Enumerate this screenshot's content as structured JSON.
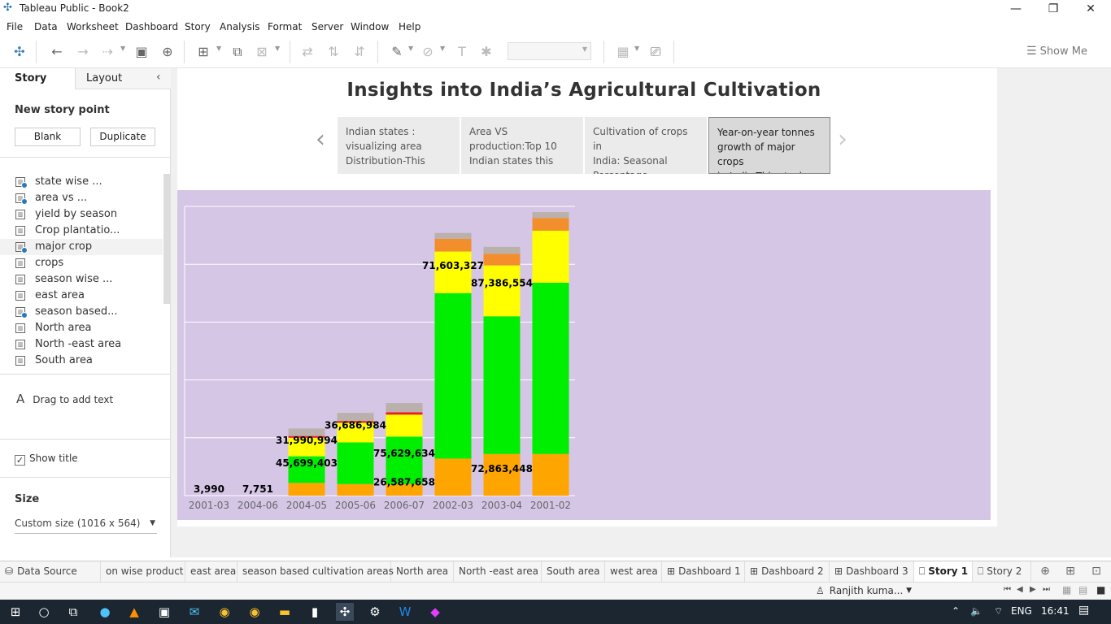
{
  "window": {
    "title": "Tableau Public - Book2",
    "controls": [
      "—",
      "❐",
      "✕"
    ]
  },
  "menu": [
    "File",
    "Data",
    "Worksheet",
    "Dashboard",
    "Story",
    "Analysis",
    "Format",
    "Server",
    "Window",
    "Help"
  ],
  "toolbar": {
    "show_me": "Show Me"
  },
  "sidebar": {
    "tab_story": "Story",
    "tab_layout": "Layout",
    "new_story_point": "New story point",
    "blank": "Blank",
    "duplicate": "Duplicate",
    "sheets": [
      {
        "label": "state wise ...",
        "used": true
      },
      {
        "label": "area vs ...",
        "used": true
      },
      {
        "label": "yield by season",
        "used": false
      },
      {
        "label": "Crop plantatio...",
        "used": false
      },
      {
        "label": "major crop",
        "used": true
      },
      {
        "label": "crops",
        "used": false
      },
      {
        "label": "season wise ...",
        "used": false
      },
      {
        "label": "east area",
        "used": false
      },
      {
        "label": " season based...",
        "used": true
      },
      {
        "label": "North area",
        "used": false
      },
      {
        "label": "North -east area",
        "used": false
      },
      {
        "label": "South area",
        "used": false
      }
    ],
    "drag_text": "Drag to add text",
    "show_title": "Show title",
    "show_title_checked": true,
    "size_label": "Size",
    "size_value": "Custom size (1016 x 564)"
  },
  "story": {
    "title": "Insights into India’s Agricultural Cultivation",
    "points": [
      {
        "text": "Indian states :\nvisualizing area\nDistribution-This",
        "active": false
      },
      {
        "text": "Area VS\nproduction:Top 10\nIndian states this",
        "active": false
      },
      {
        "text": "Cultivation of crops in\nIndia: Seasonal\nPercentage",
        "active": false
      },
      {
        "text": "Year-on-year tonnes\ngrowth of major crops\nin India-This stacker",
        "active": true
      }
    ]
  },
  "chart_data": {
    "type": "bar",
    "stacked": true,
    "categories": [
      "2001-03",
      "2004-06",
      "2004-05",
      "2005-06",
      "2006-07",
      "2002-03",
      "2003-04",
      "2001-02"
    ],
    "ylim": [
      0,
      250000000
    ],
    "grid": true,
    "series": [
      {
        "color": "#ffa500",
        "values": [
          3990,
          7751,
          11000000,
          10000000,
          10000000,
          32000000,
          36000000,
          36000000
        ]
      },
      {
        "color": "#00ee00",
        "values": [
          0,
          0,
          23000000,
          36000000,
          41000000,
          143000000,
          119000000,
          148000000
        ]
      },
      {
        "color": "#ffff00",
        "values": [
          0,
          0,
          16000000,
          17000000,
          19000000,
          36000000,
          44000000,
          45000000
        ]
      },
      {
        "color": "#ed1c24",
        "values": [
          0,
          0,
          1500000,
          1500000,
          2000000,
          0,
          0,
          0
        ]
      },
      {
        "color": "#f28e2b",
        "values": [
          0,
          0,
          0,
          0,
          0,
          11000000,
          10000000,
          11000000
        ]
      },
      {
        "color": "#bab0ac",
        "values": [
          0,
          0,
          6500000,
          7000000,
          8000000,
          5000000,
          6000000,
          5000000
        ]
      }
    ],
    "labels": [
      {
        "category": "2001-03",
        "text": "3,990",
        "level": 3990
      },
      {
        "category": "2004-06",
        "text": "7,751",
        "level": 7751
      },
      {
        "category": "2004-05",
        "text": "45,699,403",
        "level": 22500000
      },
      {
        "category": "2004-05",
        "text": "31,990,994",
        "level": 42000000
      },
      {
        "category": "2005-06",
        "text": "36,686,984",
        "level": 55000000
      },
      {
        "category": "2006-07",
        "text": "75,629,634",
        "level": 31000000
      },
      {
        "category": "2006-07",
        "text": "26,587,658",
        "level": 6000000
      },
      {
        "category": "2002-03",
        "text": "71,603,327",
        "level": 193000000
      },
      {
        "category": "2003-04",
        "text": "87,386,554",
        "level": 178000000
      },
      {
        "category": "2003-04",
        "text": "72,863,448",
        "level": 17500000
      }
    ]
  },
  "bottom_tabs": [
    {
      "label": "Data Source",
      "icon": "database-icon",
      "active": false
    },
    {
      "label": "on wise product",
      "icon": "",
      "active": false
    },
    {
      "label": "east area",
      "icon": "",
      "active": false
    },
    {
      "label": "season based cultivation areas",
      "icon": "",
      "active": false
    },
    {
      "label": "North area",
      "icon": "",
      "active": false
    },
    {
      "label": "North -east area",
      "icon": "",
      "active": false
    },
    {
      "label": "South area",
      "icon": "",
      "active": false
    },
    {
      "label": "west area",
      "icon": "",
      "active": false
    },
    {
      "label": "Dashboard 1",
      "icon": "dashboard-icon",
      "active": false
    },
    {
      "label": "Dashboard 2",
      "icon": "dashboard-icon",
      "active": false
    },
    {
      "label": "Dashboard 3",
      "icon": "dashboard-icon",
      "active": false
    },
    {
      "label": "Story 1",
      "icon": "story-icon",
      "active": true
    },
    {
      "label": "Story 2",
      "icon": "story-icon",
      "active": false
    }
  ],
  "status": {
    "user": "Ranjith kuma..."
  },
  "taskbar": {
    "lang": "ENG",
    "time": "16:41"
  }
}
